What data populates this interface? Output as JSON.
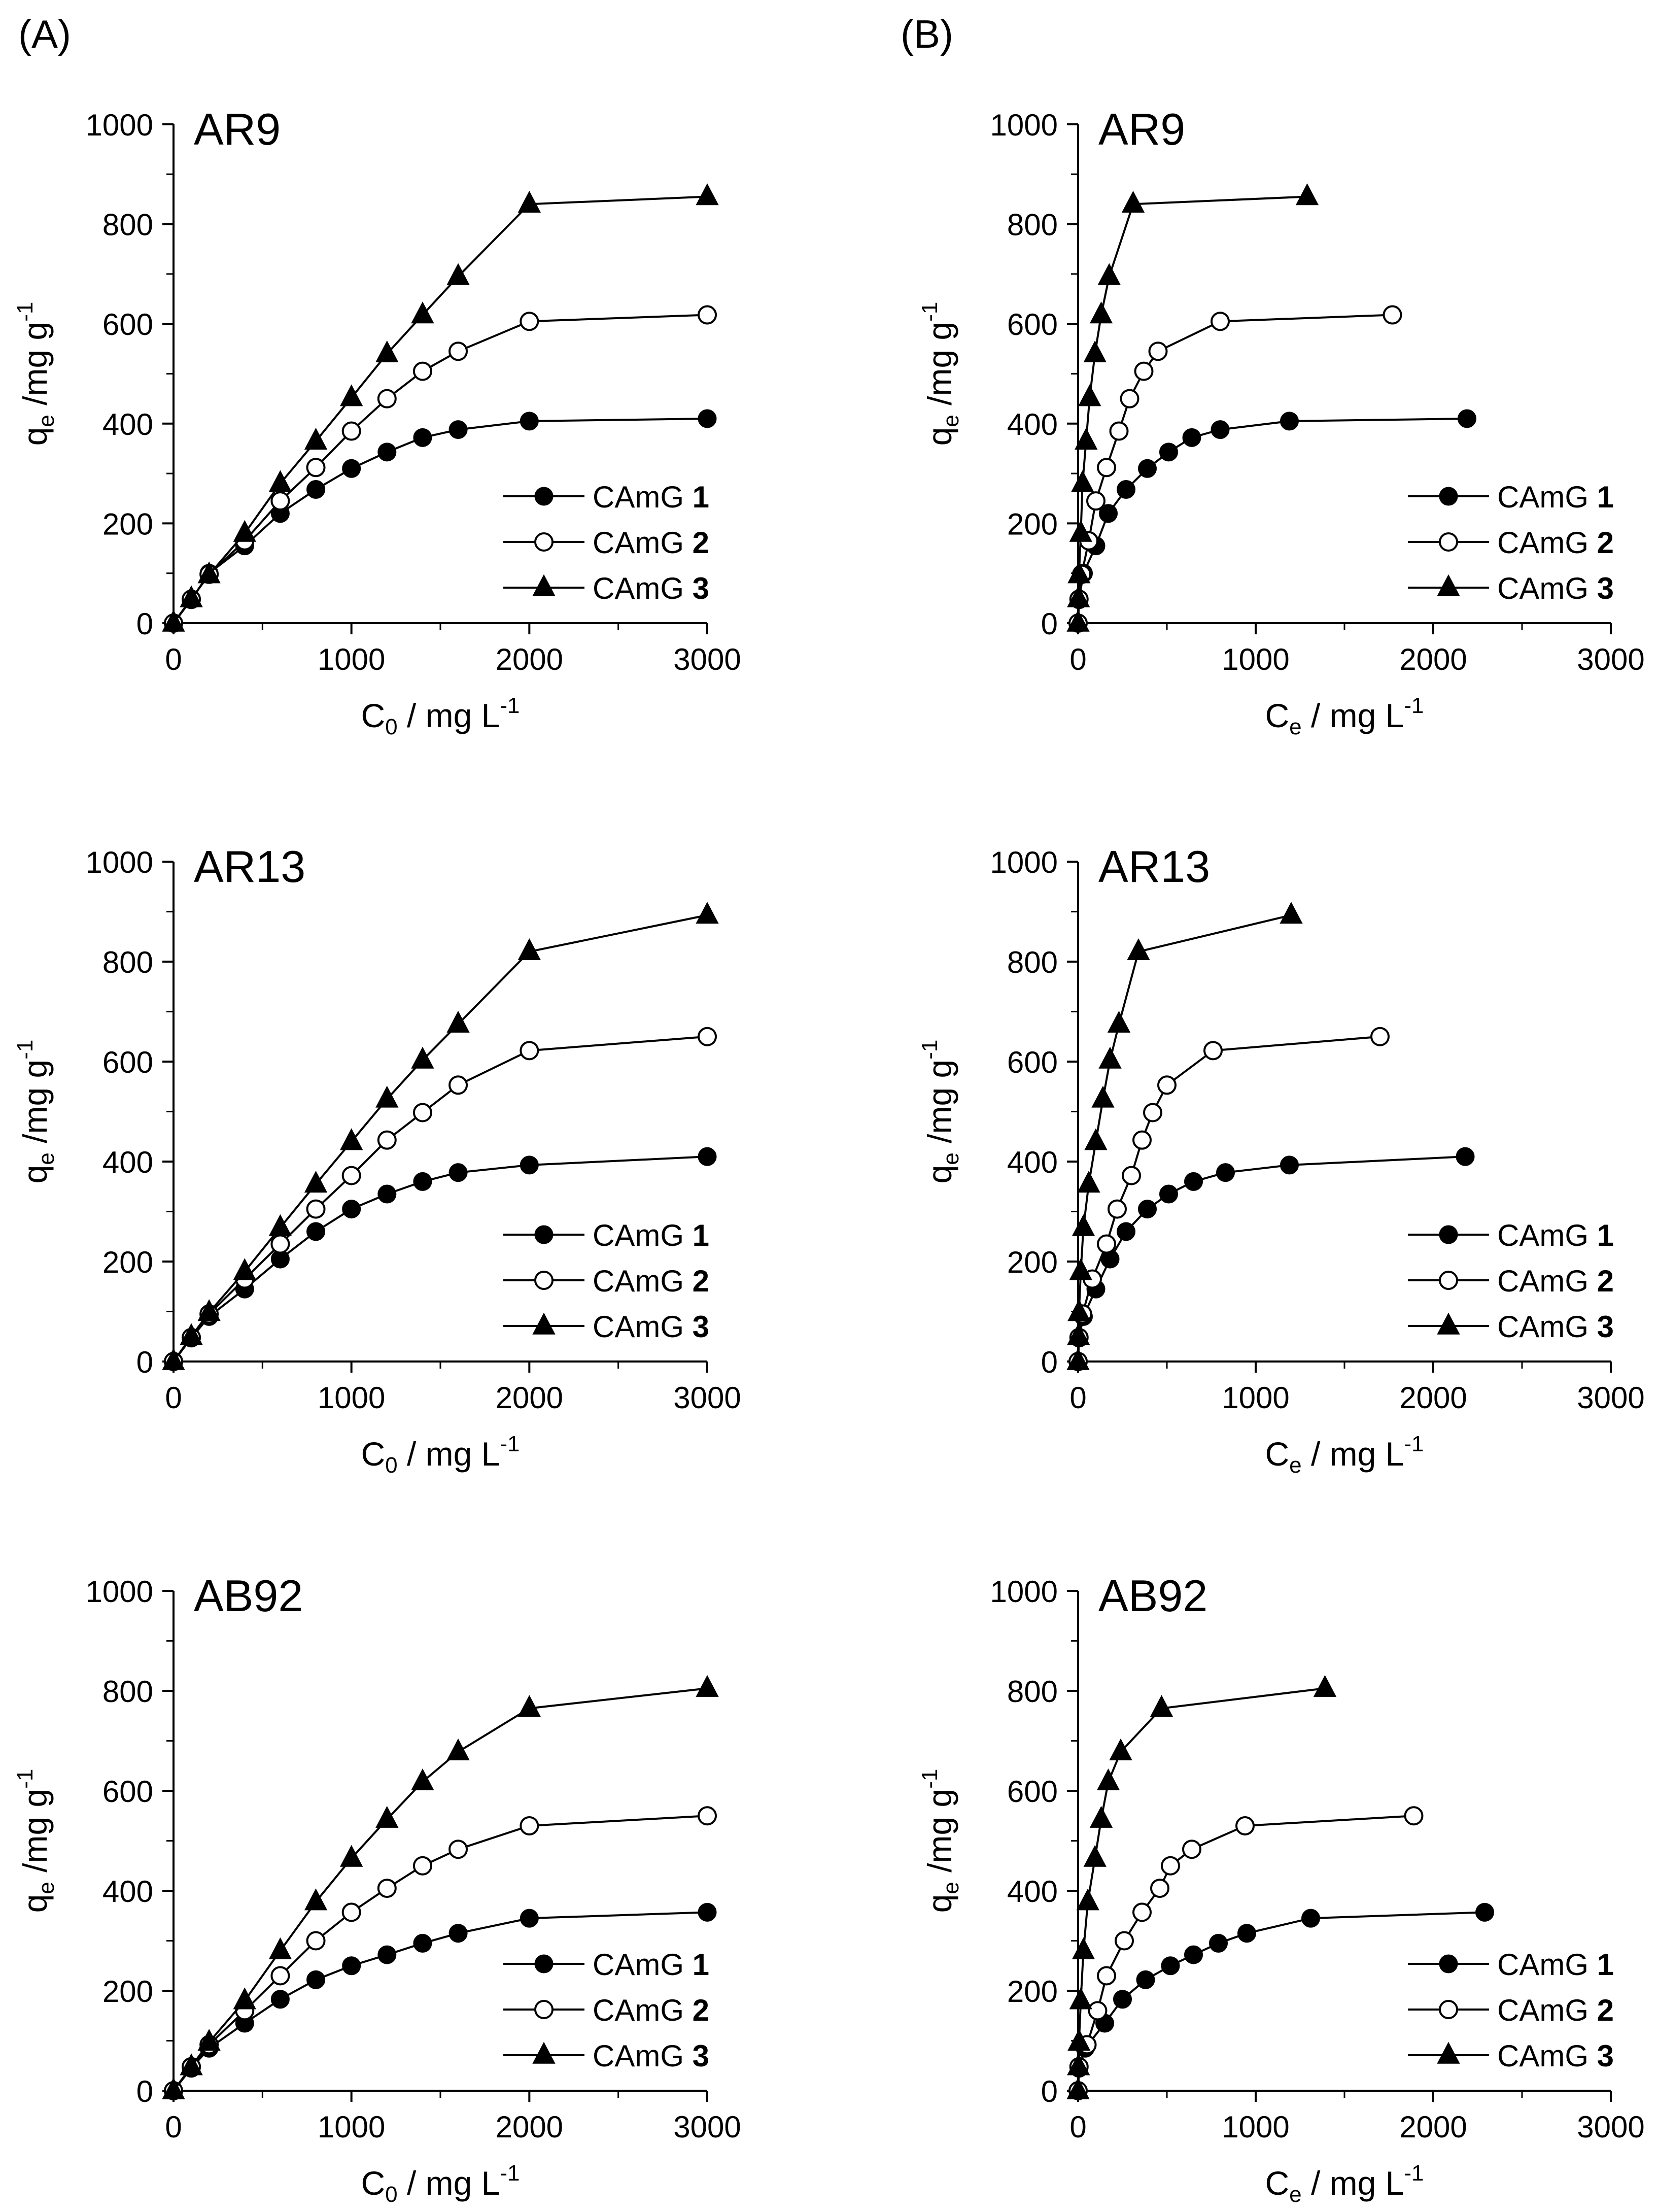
{
  "panel_labels": {
    "left": "(A)",
    "right": "(B)"
  },
  "axis_text": {
    "ylabel_main": "q",
    "ylabel_sub": "e",
    "ylabel_rest": " /mg g",
    "ylabel_sup": "-1",
    "x_c0_main": "C",
    "x_c0_sub": "0",
    "x_ce_main": "C",
    "x_ce_sub": "e",
    "x_rest": " / mg L",
    "x_sup": "-1"
  },
  "legend": [
    {
      "prefix": "CAmG ",
      "number": "1",
      "marker": "filled-circle"
    },
    {
      "prefix": "CAmG ",
      "number": "2",
      "marker": "open-circle"
    },
    {
      "prefix": "CAmG ",
      "number": "3",
      "marker": "filled-triangle"
    }
  ],
  "chart_data": [
    {
      "type": "line",
      "panel": "A",
      "title": "AR9",
      "xaxis": "C0",
      "xlim": [
        0,
        3000
      ],
      "ylim": [
        0,
        1000
      ],
      "xticks": [
        0,
        1000,
        2000,
        3000
      ],
      "yticks": [
        0,
        200,
        400,
        600,
        800,
        1000
      ],
      "series": [
        {
          "name": "CAmG 1",
          "x": [
            0,
            100,
            200,
            400,
            600,
            800,
            1000,
            1200,
            1400,
            1600,
            2000,
            3000
          ],
          "y": [
            0,
            47,
            100,
            155,
            220,
            268,
            310,
            343,
            372,
            388,
            405,
            410
          ]
        },
        {
          "name": "CAmG 2",
          "x": [
            0,
            100,
            200,
            400,
            600,
            800,
            1000,
            1200,
            1400,
            1600,
            2000,
            3000
          ],
          "y": [
            0,
            48,
            98,
            165,
            245,
            312,
            385,
            450,
            505,
            545,
            605,
            618
          ]
        },
        {
          "name": "CAmG 3",
          "x": [
            0,
            100,
            200,
            400,
            600,
            800,
            1000,
            1200,
            1400,
            1600,
            2000,
            3000
          ],
          "y": [
            0,
            49,
            97,
            180,
            280,
            365,
            452,
            540,
            618,
            695,
            840,
            855
          ]
        }
      ]
    },
    {
      "type": "line",
      "panel": "B",
      "title": "AR9",
      "xaxis": "Ce",
      "xlim": [
        0,
        3000
      ],
      "ylim": [
        0,
        1000
      ],
      "xticks": [
        0,
        1000,
        2000,
        3000
      ],
      "yticks": [
        0,
        200,
        400,
        600,
        800,
        1000
      ],
      "series": [
        {
          "name": "CAmG 1",
          "x": [
            0,
            5,
            30,
            100,
            170,
            270,
            390,
            510,
            640,
            800,
            1190,
            2190
          ],
          "y": [
            0,
            47,
            100,
            155,
            220,
            268,
            310,
            343,
            372,
            388,
            405,
            410
          ]
        },
        {
          "name": "CAmG 2",
          "x": [
            0,
            5,
            20,
            60,
            100,
            160,
            230,
            290,
            370,
            450,
            800,
            1770
          ],
          "y": [
            0,
            48,
            98,
            165,
            245,
            312,
            385,
            450,
            505,
            545,
            605,
            618
          ]
        },
        {
          "name": "CAmG 3",
          "x": [
            0,
            2,
            5,
            15,
            25,
            45,
            65,
            95,
            130,
            175,
            310,
            1290
          ],
          "y": [
            0,
            49,
            97,
            180,
            280,
            365,
            452,
            540,
            618,
            695,
            840,
            855
          ]
        }
      ]
    },
    {
      "type": "line",
      "panel": "A",
      "title": "AR13",
      "xaxis": "C0",
      "xlim": [
        0,
        3000
      ],
      "ylim": [
        0,
        1000
      ],
      "xticks": [
        0,
        1000,
        2000,
        3000
      ],
      "yticks": [
        0,
        200,
        400,
        600,
        800,
        1000
      ],
      "series": [
        {
          "name": "CAmG 1",
          "x": [
            0,
            100,
            200,
            400,
            600,
            800,
            1000,
            1200,
            1400,
            1600,
            2000,
            3000
          ],
          "y": [
            0,
            47,
            90,
            145,
            205,
            260,
            305,
            335,
            360,
            378,
            393,
            410
          ]
        },
        {
          "name": "CAmG 2",
          "x": [
            0,
            100,
            200,
            400,
            600,
            800,
            1000,
            1200,
            1400,
            1600,
            2000,
            3000
          ],
          "y": [
            0,
            48,
            95,
            165,
            235,
            305,
            372,
            443,
            498,
            553,
            622,
            650
          ]
        },
        {
          "name": "CAmG 3",
          "x": [
            0,
            100,
            200,
            400,
            600,
            800,
            1000,
            1200,
            1400,
            1600,
            2000,
            3000
          ],
          "y": [
            0,
            50,
            98,
            180,
            268,
            355,
            440,
            525,
            603,
            675,
            820,
            893
          ]
        }
      ]
    },
    {
      "type": "line",
      "panel": "B",
      "title": "AR13",
      "xaxis": "Ce",
      "xlim": [
        0,
        3000
      ],
      "ylim": [
        0,
        1000
      ],
      "xticks": [
        0,
        1000,
        2000,
        3000
      ],
      "yticks": [
        0,
        200,
        400,
        600,
        800,
        1000
      ],
      "series": [
        {
          "name": "CAmG 1",
          "x": [
            0,
            5,
            30,
            100,
            180,
            270,
            390,
            510,
            650,
            830,
            1190,
            2180
          ],
          "y": [
            0,
            47,
            90,
            145,
            205,
            260,
            305,
            335,
            360,
            378,
            393,
            410
          ]
        },
        {
          "name": "CAmG 2",
          "x": [
            0,
            5,
            25,
            80,
            160,
            220,
            300,
            360,
            420,
            500,
            760,
            1700
          ],
          "y": [
            0,
            48,
            95,
            165,
            235,
            305,
            372,
            443,
            498,
            553,
            622,
            650
          ]
        },
        {
          "name": "CAmG 3",
          "x": [
            0,
            2,
            5,
            15,
            30,
            60,
            100,
            140,
            180,
            230,
            340,
            1200
          ],
          "y": [
            0,
            50,
            98,
            180,
            268,
            355,
            440,
            525,
            603,
            675,
            820,
            893
          ]
        }
      ]
    },
    {
      "type": "line",
      "panel": "A",
      "title": "AB92",
      "xaxis": "C0",
      "xlim": [
        0,
        3000
      ],
      "ylim": [
        0,
        1000
      ],
      "xticks": [
        0,
        1000,
        2000,
        3000
      ],
      "yticks": [
        0,
        200,
        400,
        600,
        800,
        1000
      ],
      "series": [
        {
          "name": "CAmG 1",
          "x": [
            0,
            100,
            200,
            400,
            600,
            800,
            1000,
            1200,
            1400,
            1600,
            2000,
            3000
          ],
          "y": [
            0,
            45,
            85,
            135,
            183,
            222,
            250,
            272,
            295,
            315,
            345,
            357
          ]
        },
        {
          "name": "CAmG 2",
          "x": [
            0,
            100,
            200,
            400,
            600,
            800,
            1000,
            1200,
            1400,
            1600,
            2000,
            3000
          ],
          "y": [
            0,
            48,
            92,
            160,
            230,
            300,
            357,
            405,
            450,
            483,
            530,
            550
          ]
        },
        {
          "name": "CAmG 3",
          "x": [
            0,
            100,
            200,
            400,
            600,
            800,
            1000,
            1200,
            1400,
            1600,
            2000,
            3000
          ],
          "y": [
            0,
            48,
            97,
            180,
            280,
            378,
            465,
            543,
            618,
            678,
            765,
            805
          ]
        }
      ]
    },
    {
      "type": "line",
      "panel": "B",
      "title": "AB92",
      "xaxis": "Ce",
      "xlim": [
        0,
        3000
      ],
      "ylim": [
        0,
        1000
      ],
      "xticks": [
        0,
        1000,
        2000,
        3000
      ],
      "yticks": [
        0,
        200,
        400,
        600,
        800,
        1000
      ],
      "series": [
        {
          "name": "CAmG 1",
          "x": [
            0,
            5,
            40,
            150,
            250,
            380,
            520,
            650,
            790,
            950,
            1310,
            2290
          ],
          "y": [
            0,
            45,
            85,
            135,
            183,
            222,
            250,
            272,
            295,
            315,
            345,
            357
          ]
        },
        {
          "name": "CAmG 2",
          "x": [
            0,
            5,
            50,
            110,
            160,
            260,
            360,
            460,
            520,
            640,
            940,
            1890
          ],
          "y": [
            0,
            48,
            92,
            160,
            230,
            300,
            357,
            405,
            450,
            483,
            530,
            550
          ]
        },
        {
          "name": "CAmG 3",
          "x": [
            0,
            2,
            5,
            15,
            30,
            55,
            95,
            130,
            170,
            240,
            470,
            1390
          ],
          "y": [
            0,
            48,
            97,
            180,
            280,
            378,
            465,
            543,
            618,
            678,
            765,
            805
          ]
        }
      ]
    }
  ]
}
